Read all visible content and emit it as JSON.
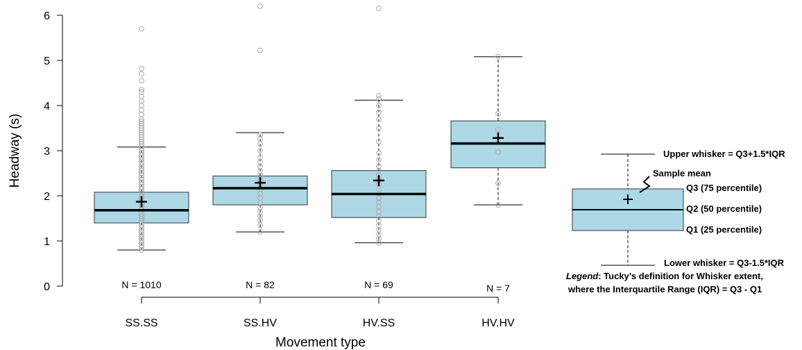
{
  "chart_data": {
    "type": "boxplot",
    "xlabel": "Movement type",
    "ylabel": "Headway (s)",
    "ylim": [
      0,
      6
    ],
    "yticks": [
      "0",
      "1",
      "2",
      "3",
      "4",
      "5",
      "6"
    ],
    "colors": {
      "box_fill": "#add8e6",
      "outlier": "#aaaaaa",
      "line": "#000000"
    },
    "categories": [
      "SS.SS",
      "SS.HV",
      "HV.SS",
      "HV.HV"
    ],
    "counts": [
      "N = 1010",
      "N = 82",
      "N = 69",
      "N = 7"
    ],
    "boxes": [
      {
        "min": 0.8,
        "q1": 1.4,
        "median": 1.68,
        "q3": 2.08,
        "max": 3.08,
        "mean": 1.87,
        "outliers": [
          0.8,
          0.85,
          0.9,
          0.95,
          1.0,
          1.05,
          1.1,
          1.15,
          1.2,
          1.25,
          1.3,
          1.35,
          1.4,
          1.45,
          1.5,
          1.55,
          1.6,
          1.65,
          1.7,
          1.75,
          1.8,
          1.85,
          1.9,
          1.95,
          2.0,
          2.05,
          2.1,
          2.15,
          2.2,
          2.25,
          2.3,
          2.35,
          2.4,
          2.45,
          2.5,
          2.55,
          2.6,
          2.65,
          2.7,
          2.75,
          2.8,
          2.85,
          2.9,
          2.95,
          3.0,
          3.05,
          3.1,
          3.15,
          3.2,
          3.25,
          3.3,
          3.35,
          3.4,
          3.45,
          3.5,
          3.55,
          3.6,
          3.65,
          3.7,
          3.8,
          3.9,
          4.0,
          4.1,
          4.2,
          4.3,
          4.35,
          4.55,
          4.7,
          4.82,
          5.7
        ]
      },
      {
        "min": 1.2,
        "q1": 1.8,
        "median": 2.17,
        "q3": 2.44,
        "max": 3.4,
        "mean": 2.29,
        "outliers": [
          1.2,
          1.35,
          1.45,
          1.55,
          1.65,
          1.75,
          1.85,
          1.95,
          2.05,
          2.15,
          2.25,
          2.35,
          2.45,
          2.55,
          2.65,
          2.75,
          2.85,
          3.0,
          3.15,
          3.25,
          3.35,
          5.22,
          6.2
        ]
      },
      {
        "min": 0.96,
        "q1": 1.52,
        "median": 2.04,
        "q3": 2.56,
        "max": 4.12,
        "mean": 2.34,
        "outliers": [
          0.96,
          1.05,
          1.15,
          1.25,
          1.35,
          1.45,
          1.55,
          1.65,
          1.75,
          1.85,
          1.95,
          2.05,
          2.15,
          2.25,
          2.35,
          2.45,
          2.55,
          2.65,
          2.8,
          2.95,
          3.2,
          3.5,
          3.7,
          3.85,
          4.0,
          4.15,
          4.22,
          6.15
        ]
      },
      {
        "min": 1.8,
        "q1": 2.62,
        "median": 3.16,
        "q3": 3.66,
        "max": 5.08,
        "mean": 3.28,
        "outliers": [
          1.8,
          2.28,
          2.97,
          3.47,
          3.82,
          5.08
        ]
      }
    ],
    "legend": {
      "upper_whisker": "Upper whisker = Q3+1.5*IQR",
      "sample_mean": "Sample mean",
      "q3": "Q3 (75 percentile)",
      "q2": "Q2 (50 percentile)",
      "q1": "Q1 (25 percentile)",
      "lower_whisker": "Lower whisker = Q3-1.5*IQR",
      "note_italic": "Legend",
      "note_rest": ": Tucky’s definition for Whisker extent,",
      "note_line2": "where the Interquartile Range (IQR) = Q3 - Q1"
    }
  }
}
